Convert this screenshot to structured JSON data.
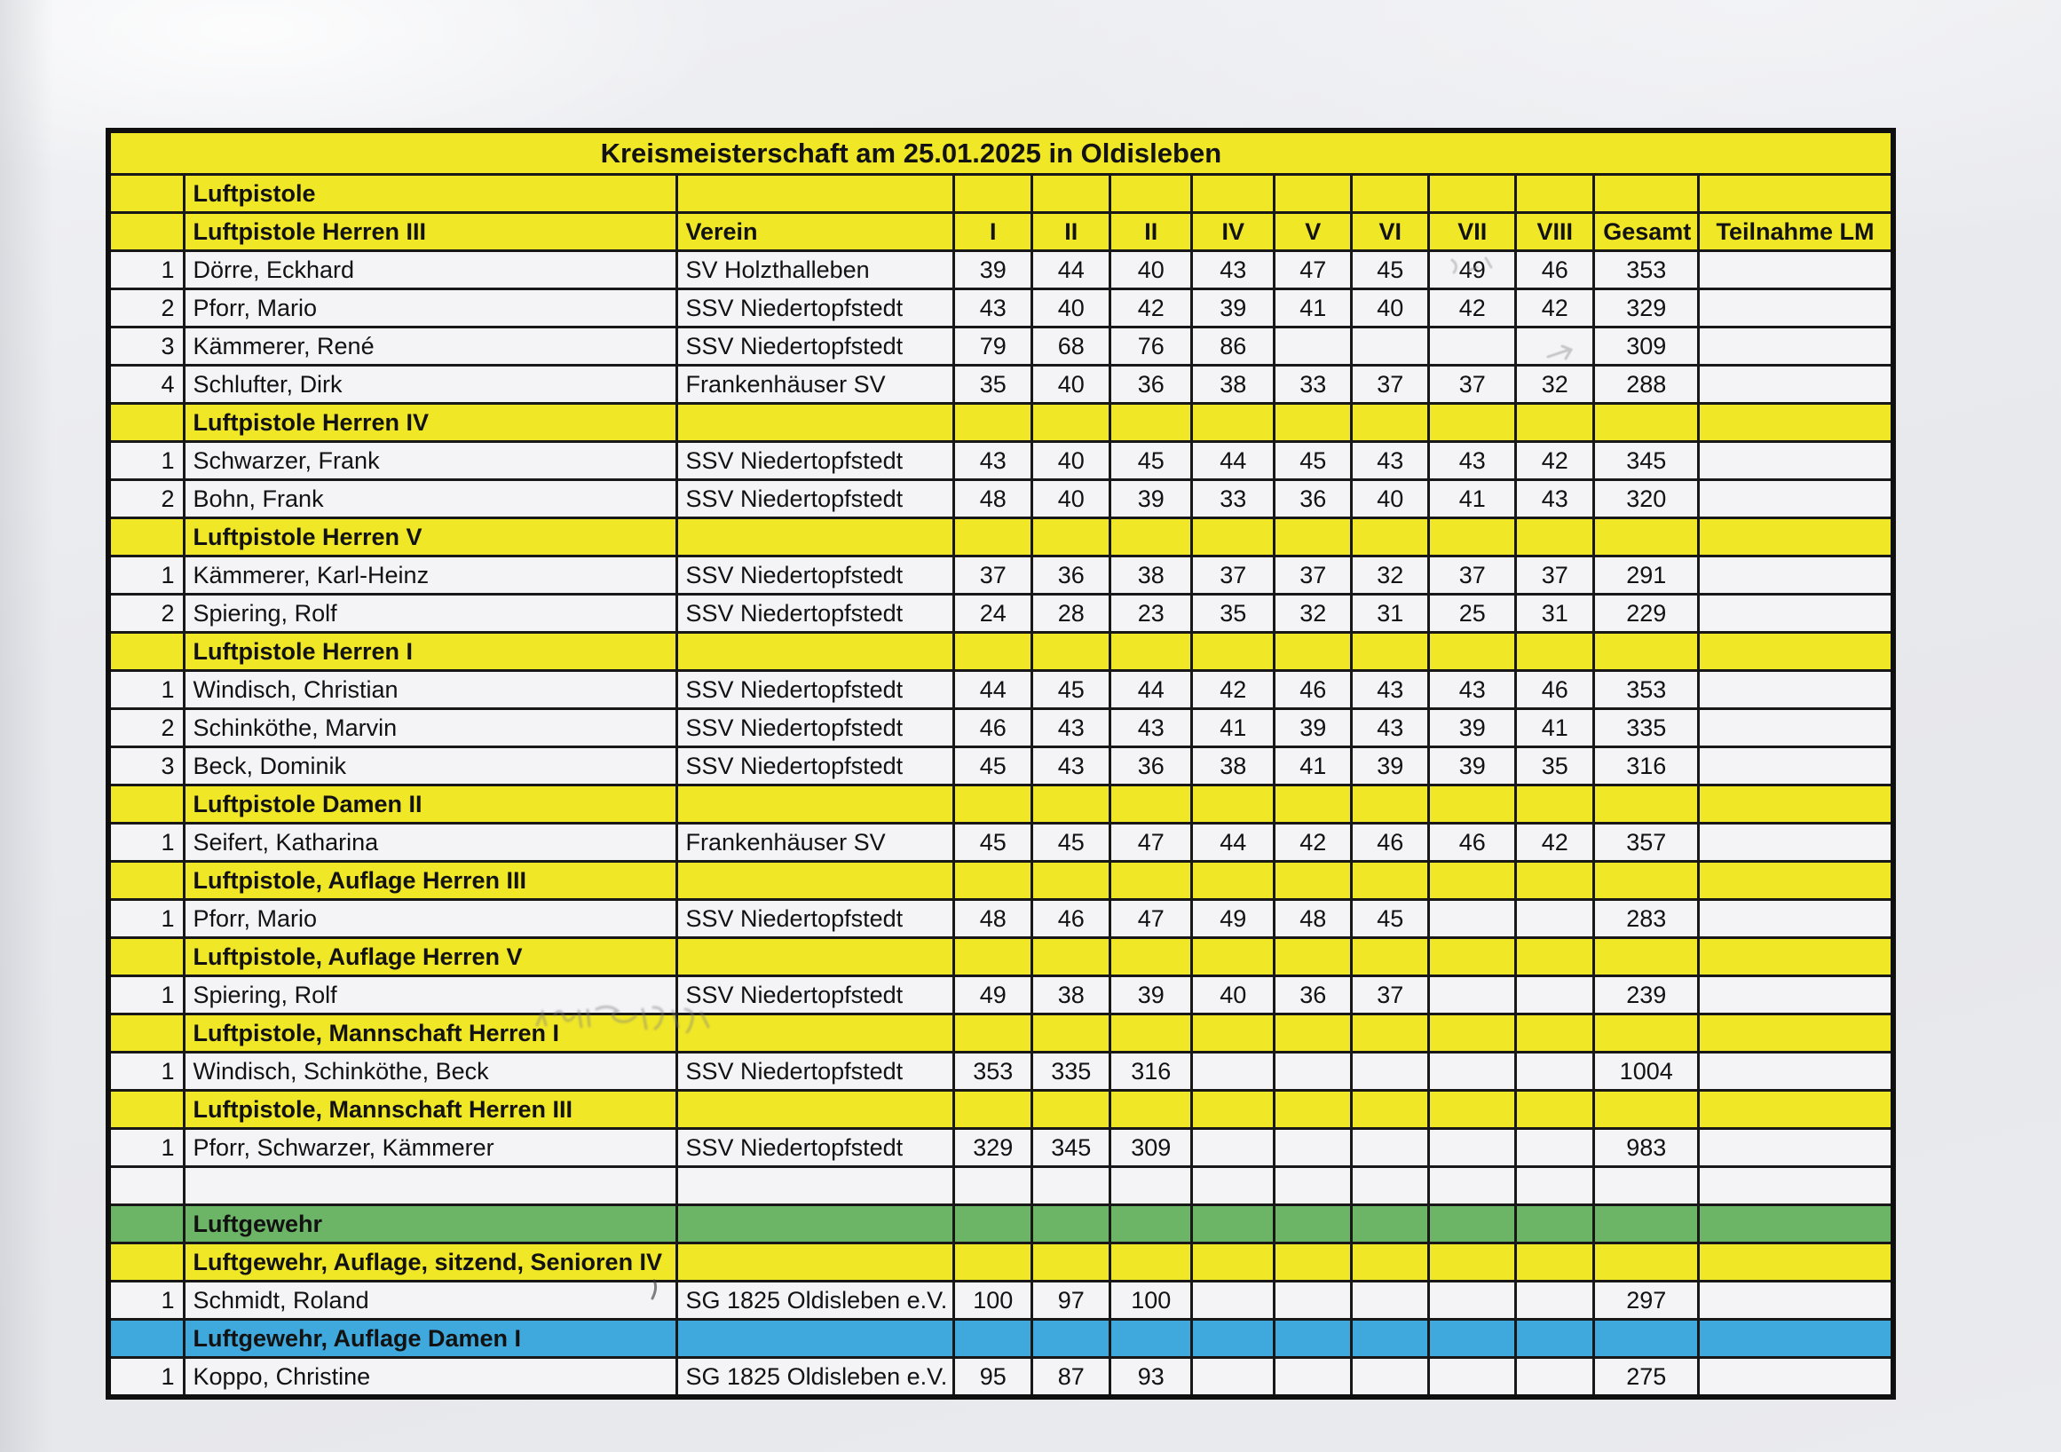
{
  "document": {
    "title": "Kreismeisterschaft am 25.01.2025 in Oldisleben"
  },
  "colors": {
    "yellow": "#f0e727",
    "green": "#6cb466",
    "blue": "#3fa8dc",
    "row_white": "#f4f4f7",
    "border": "#181818"
  },
  "table": {
    "rows": [
      {
        "type": "title",
        "label": "Kreismeisterschaft am 25.01.2025 in Oldisleben"
      },
      {
        "type": "section",
        "color": "yellow",
        "label": "Luftpistole"
      },
      {
        "type": "columns-header",
        "color": "yellow",
        "discipline": "Luftpistole Herren III",
        "verein": "Verein",
        "series": [
          "I",
          "II",
          "II",
          "IV",
          "V",
          "VI",
          "VII",
          "VIII"
        ],
        "gesamt": "Gesamt",
        "teilnahme": "Teilnahme LM"
      },
      {
        "type": "result",
        "rank": "1",
        "name": "Dörre, Eckhard",
        "club": "SV Holzthalleben",
        "scores": [
          "39",
          "44",
          "40",
          "43",
          "47",
          "45",
          "49",
          "46"
        ],
        "total": "353",
        "lm": ""
      },
      {
        "type": "result",
        "rank": "2",
        "name": "Pforr, Mario",
        "club": "SSV Niedertopfstedt",
        "scores": [
          "43",
          "40",
          "42",
          "39",
          "41",
          "40",
          "42",
          "42"
        ],
        "total": "329",
        "lm": ""
      },
      {
        "type": "result",
        "rank": "3",
        "name": "Kämmerer, René",
        "club": "SSV Niedertopfstedt",
        "scores": [
          "79",
          "68",
          "76",
          "86",
          "",
          "",
          "",
          ""
        ],
        "total": "309",
        "lm": ""
      },
      {
        "type": "result",
        "rank": "4",
        "name": "Schlufter, Dirk",
        "club": "Frankenhäuser SV",
        "scores": [
          "35",
          "40",
          "36",
          "38",
          "33",
          "37",
          "37",
          "32"
        ],
        "total": "288",
        "lm": ""
      },
      {
        "type": "section",
        "color": "yellow",
        "label": "Luftpistole Herren IV"
      },
      {
        "type": "result",
        "rank": "1",
        "name": "Schwarzer, Frank",
        "club": "SSV Niedertopfstedt",
        "scores": [
          "43",
          "40",
          "45",
          "44",
          "45",
          "43",
          "43",
          "42"
        ],
        "total": "345",
        "lm": ""
      },
      {
        "type": "result",
        "rank": "2",
        "name": "Bohn, Frank",
        "club": "SSV Niedertopfstedt",
        "scores": [
          "48",
          "40",
          "39",
          "33",
          "36",
          "40",
          "41",
          "43"
        ],
        "total": "320",
        "lm": ""
      },
      {
        "type": "section",
        "color": "yellow",
        "label": "Luftpistole Herren V"
      },
      {
        "type": "result",
        "rank": "1",
        "name": "Kämmerer, Karl-Heinz",
        "club": "SSV Niedertopfstedt",
        "scores": [
          "37",
          "36",
          "38",
          "37",
          "37",
          "32",
          "37",
          "37"
        ],
        "total": "291",
        "lm": ""
      },
      {
        "type": "result",
        "rank": "2",
        "name": "Spiering, Rolf",
        "club": "SSV Niedertopfstedt",
        "scores": [
          "24",
          "28",
          "23",
          "35",
          "32",
          "31",
          "25",
          "31"
        ],
        "total": "229",
        "lm": ""
      },
      {
        "type": "section",
        "color": "yellow",
        "label": "Luftpistole Herren I"
      },
      {
        "type": "result",
        "rank": "1",
        "name": "Windisch, Christian",
        "club": "SSV Niedertopfstedt",
        "scores": [
          "44",
          "45",
          "44",
          "42",
          "46",
          "43",
          "43",
          "46"
        ],
        "total": "353",
        "lm": ""
      },
      {
        "type": "result",
        "rank": "2",
        "name": "Schinköthe, Marvin",
        "club": "SSV Niedertopfstedt",
        "scores": [
          "46",
          "43",
          "43",
          "41",
          "39",
          "43",
          "39",
          "41"
        ],
        "total": "335",
        "lm": ""
      },
      {
        "type": "result",
        "rank": "3",
        "name": "Beck, Dominik",
        "club": "SSV Niedertopfstedt",
        "scores": [
          "45",
          "43",
          "36",
          "38",
          "41",
          "39",
          "39",
          "35"
        ],
        "total": "316",
        "lm": ""
      },
      {
        "type": "section",
        "color": "yellow",
        "label": "Luftpistole Damen II"
      },
      {
        "type": "result",
        "rank": "1",
        "name": "Seifert, Katharina",
        "club": "Frankenhäuser SV",
        "scores": [
          "45",
          "45",
          "47",
          "44",
          "42",
          "46",
          "46",
          "42"
        ],
        "total": "357",
        "lm": ""
      },
      {
        "type": "section",
        "color": "yellow",
        "label": "Luftpistole, Auflage Herren III"
      },
      {
        "type": "result",
        "rank": "1",
        "name": "Pforr, Mario",
        "club": "SSV Niedertopfstedt",
        "scores": [
          "48",
          "46",
          "47",
          "49",
          "48",
          "45",
          "",
          ""
        ],
        "total": "283",
        "lm": ""
      },
      {
        "type": "section",
        "color": "yellow",
        "label": "Luftpistole, Auflage Herren V"
      },
      {
        "type": "result",
        "rank": "1",
        "name": "Spiering, Rolf",
        "club": "SSV Niedertopfstedt",
        "scores": [
          "49",
          "38",
          "39",
          "40",
          "36",
          "37",
          "",
          ""
        ],
        "total": "239",
        "lm": ""
      },
      {
        "type": "section",
        "color": "yellow",
        "label": "Luftpistole, Mannschaft Herren I"
      },
      {
        "type": "result",
        "rank": "1",
        "name": "Windisch, Schinköthe, Beck",
        "club": "SSV Niedertopfstedt",
        "scores": [
          "353",
          "335",
          "316",
          "",
          "",
          "",
          "",
          ""
        ],
        "total": "1004",
        "lm": ""
      },
      {
        "type": "section",
        "color": "yellow",
        "label": "Luftpistole, Mannschaft Herren III"
      },
      {
        "type": "result",
        "rank": "1",
        "name": "Pforr, Schwarzer, Kämmerer",
        "club": "SSV Niedertopfstedt",
        "scores": [
          "329",
          "345",
          "309",
          "",
          "",
          "",
          "",
          ""
        ],
        "total": "983",
        "lm": ""
      },
      {
        "type": "empty"
      },
      {
        "type": "section",
        "color": "green",
        "label": "Luftgewehr"
      },
      {
        "type": "section",
        "color": "yellow",
        "label": "Luftgewehr, Auflage, sitzend, Senioren IV"
      },
      {
        "type": "result",
        "rank": "1",
        "name": "Schmidt, Roland",
        "club": "SG 1825 Oldisleben e.V.",
        "scores": [
          "100",
          "97",
          "100",
          "",
          "",
          "",
          "",
          ""
        ],
        "total": "297",
        "lm": ""
      },
      {
        "type": "section",
        "color": "blue",
        "label": "Luftgewehr, Auflage Damen I"
      },
      {
        "type": "result",
        "rank": "1",
        "name": "Koppo, Christine",
        "club": "SG 1825 Oldisleben e.V.",
        "scores": [
          "95",
          "87",
          "93",
          "",
          "",
          "",
          "",
          ""
        ],
        "total": "275",
        "lm": ""
      }
    ]
  }
}
